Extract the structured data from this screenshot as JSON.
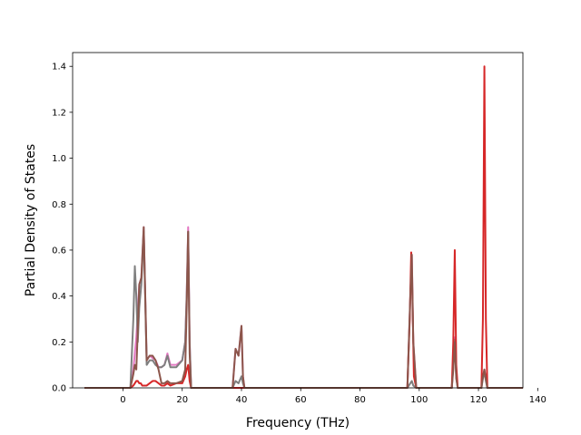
{
  "chart_data": {
    "type": "line",
    "title": "",
    "xlabel": "Frequency (THz)",
    "ylabel": "Partial Density of States",
    "xlim": [
      -17,
      135
    ],
    "ylim": [
      0,
      1.46
    ],
    "xticks": [
      0,
      20,
      40,
      60,
      80,
      100,
      120,
      140
    ],
    "yticks": [
      0.0,
      0.2,
      0.4,
      0.6,
      0.8,
      1.0,
      1.2,
      1.4
    ],
    "xtick_labels": [
      "0",
      "20",
      "40",
      "60",
      "80",
      "100",
      "120",
      "140"
    ],
    "ytick_labels": [
      "0.0",
      "0.2",
      "0.4",
      "0.6",
      "0.8",
      "1.0",
      "1.2",
      "1.4"
    ],
    "grid": false,
    "legend": false,
    "series": [
      {
        "color": "#e377c2",
        "x": [
          -13,
          2.5,
          3.5,
          4.5,
          5.5,
          6.2,
          7,
          8,
          9,
          10,
          11,
          12,
          13,
          14,
          15,
          16,
          18,
          20,
          21,
          21.5,
          22,
          22.5,
          23,
          37,
          38,
          39,
          40,
          40.5,
          41,
          96,
          97,
          97.5,
          98,
          99,
          111,
          111.5,
          112,
          112.5,
          113,
          121,
          121.5,
          122,
          122.5,
          123,
          135
        ],
        "y": [
          0,
          0,
          0.08,
          0.22,
          0.45,
          0.48,
          0.7,
          0.12,
          0.14,
          0.13,
          0.12,
          0.09,
          0.09,
          0.1,
          0.15,
          0.1,
          0.1,
          0.12,
          0.2,
          0.4,
          0.7,
          0.2,
          0,
          0,
          0.17,
          0.14,
          0.27,
          0.05,
          0,
          0,
          0.4,
          0.58,
          0.2,
          0,
          0,
          0.1,
          0.22,
          0.05,
          0,
          0,
          0.05,
          0.08,
          0.04,
          0,
          0
        ]
      },
      {
        "color": "#7f7f7f",
        "x": [
          -13,
          2.5,
          3.5,
          4,
          4.5,
          5,
          5.5,
          6.2,
          7,
          8,
          9,
          10,
          11,
          12,
          13,
          14,
          15,
          16,
          18,
          20,
          21,
          21.5,
          22,
          22.5,
          23,
          37,
          38,
          39,
          40,
          40.5,
          41,
          96,
          97,
          97.5,
          98,
          99,
          111,
          111.5,
          112,
          112.5,
          113,
          121,
          121.5,
          122,
          122.5,
          123,
          135
        ],
        "y": [
          0,
          0,
          0.3,
          0.53,
          0.4,
          0.2,
          0.35,
          0.45,
          0.68,
          0.1,
          0.12,
          0.12,
          0.1,
          0.09,
          0.09,
          0.1,
          0.14,
          0.09,
          0.09,
          0.12,
          0.2,
          0.4,
          0.68,
          0.2,
          0,
          0,
          0.03,
          0.02,
          0.05,
          0.02,
          0,
          0,
          0.02,
          0.03,
          0.01,
          0,
          0,
          0.1,
          0.21,
          0.05,
          0,
          0,
          0.04,
          0.07,
          0.03,
          0,
          0
        ]
      },
      {
        "color": "#d62728",
        "x": [
          -13,
          2.5,
          3.5,
          4,
          4.5,
          5,
          5.5,
          6,
          6.5,
          7,
          8,
          9,
          10,
          11,
          12,
          13,
          14,
          15,
          16,
          18,
          20,
          21,
          21.5,
          22,
          22.5,
          23,
          37,
          38,
          39,
          40,
          41,
          96,
          96.8,
          97.3,
          97.7,
          98.2,
          99,
          111,
          111.5,
          112,
          112.5,
          113,
          121,
          121.5,
          122,
          122.5,
          123,
          135
        ],
        "y": [
          0,
          0,
          0.01,
          0.02,
          0.03,
          0.03,
          0.02,
          0.02,
          0.01,
          0.01,
          0.01,
          0.02,
          0.03,
          0.03,
          0.02,
          0.01,
          0.01,
          0.02,
          0.01,
          0.02,
          0.02,
          0.05,
          0.08,
          0.1,
          0.03,
          0,
          0,
          0,
          0,
          0,
          0,
          0,
          0.3,
          0.59,
          0.4,
          0.05,
          0,
          0,
          0.2,
          0.6,
          0.1,
          0,
          0,
          0.3,
          1.4,
          0.3,
          0,
          0
        ]
      },
      {
        "color": "#8c564b",
        "x": [
          -13,
          2.5,
          3.5,
          4,
          4.5,
          5,
          5.5,
          6.2,
          7,
          8,
          9,
          10,
          11,
          12,
          13,
          14,
          15,
          16,
          18,
          20,
          21,
          21.5,
          22,
          22.5,
          23,
          37,
          38,
          39,
          40,
          40.5,
          41,
          96,
          97,
          97.5,
          98,
          99,
          111,
          111.5,
          112,
          112.5,
          113,
          121,
          121.5,
          122,
          122.5,
          123,
          135
        ],
        "y": [
          0,
          0,
          0.06,
          0.1,
          0.08,
          0.25,
          0.45,
          0.48,
          0.7,
          0.12,
          0.14,
          0.14,
          0.12,
          0.08,
          0.02,
          0.02,
          0.03,
          0.02,
          0.02,
          0.03,
          0.08,
          0.35,
          0.68,
          0.15,
          0,
          0,
          0.17,
          0.14,
          0.27,
          0.05,
          0,
          0,
          0.4,
          0.58,
          0.2,
          0,
          0,
          0.08,
          0.2,
          0.04,
          0,
          0,
          0.05,
          0.08,
          0.04,
          0,
          0
        ]
      }
    ]
  }
}
